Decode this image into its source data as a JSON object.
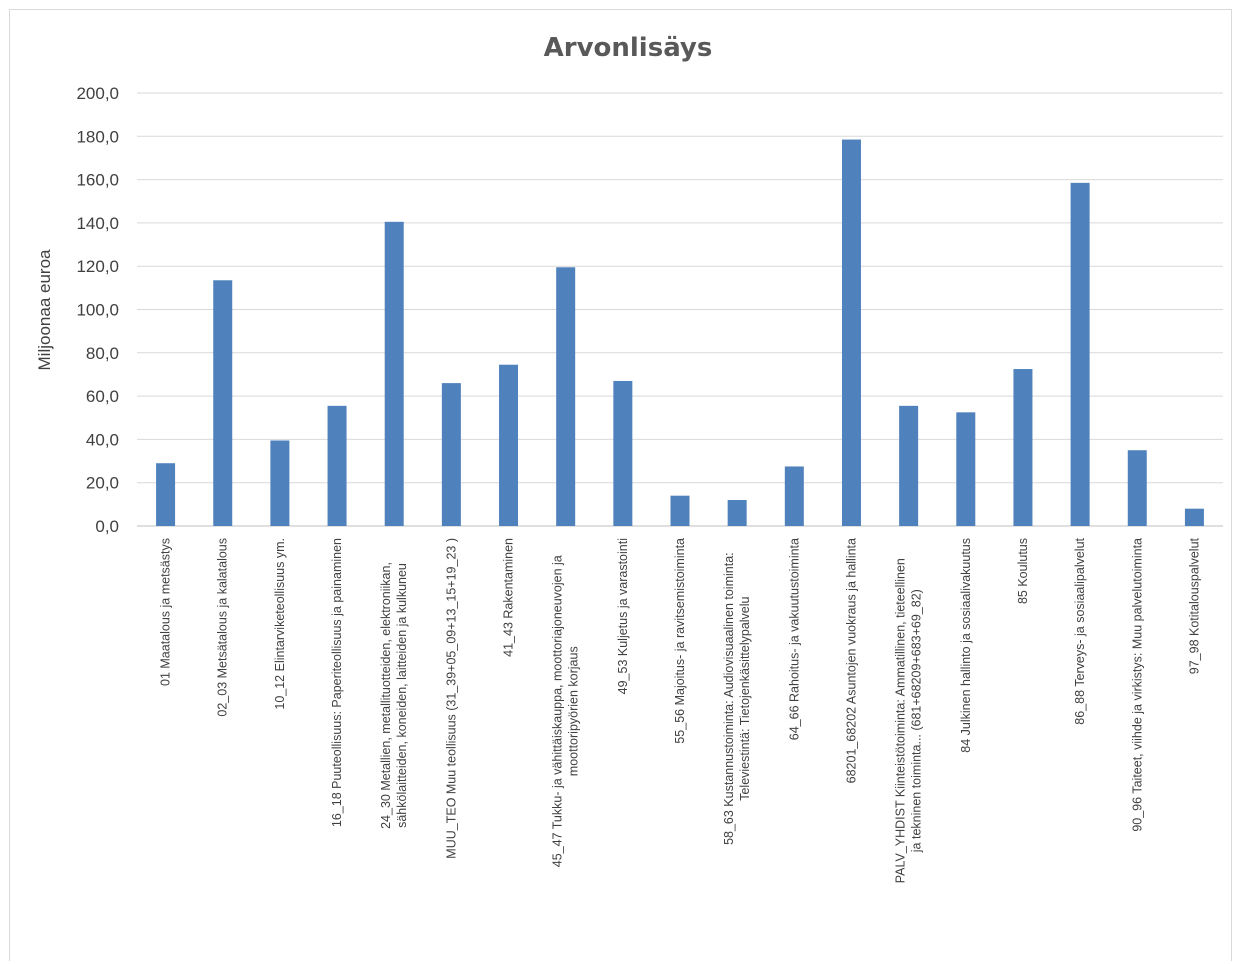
{
  "chart_data": {
    "type": "bar",
    "title": "Arvonlisäys",
    "xlabel": "",
    "ylabel": "Miljoonaa euroa",
    "ylim": [
      0,
      200
    ],
    "yticks": [
      "0,0",
      "20,0",
      "40,0",
      "60,0",
      "80,0",
      "100,0",
      "120,0",
      "140,0",
      "160,0",
      "180,0",
      "200,0"
    ],
    "grid": true,
    "legend": "none",
    "bar_color": "#4f81bd",
    "categories": [
      [
        "01 Maatalous ja metsästys"
      ],
      [
        "02_03 Metsätalous ja kalatalous"
      ],
      [
        "10_12 Elintarviketeollisuus ym."
      ],
      [
        "16_18 Puuteollisuus: Paperiteollisuus ja painaminen"
      ],
      [
        "24_30 Metallien, metallituotteiden, elektroniikan,",
        "sähkölaitteiden, koneiden, laitteiden ja kulkuneu"
      ],
      [
        "MUU_TEO Muu teollisuus (31_39+05_09+13_15+19_23 )"
      ],
      [
        "41_43 Rakentaminen"
      ],
      [
        "45_47 Tukku- ja vähittäiskauppa, moottoriajoneuvojen ja",
        "moottoripyörien korjaus"
      ],
      [
        "49_53 Kuljetus ja varastointi"
      ],
      [
        "55_56 Majoitus- ja ravitsemistoiminta"
      ],
      [
        "58_63 Kustannustoiminta: Audiovisuaalinen toiminta:",
        "Televiestintä: Tietojenkäsittelypalvelu"
      ],
      [
        "64_66 Rahoitus- ja vakuutustoiminta"
      ],
      [
        "68201_68202 Asuntojen vuokraus ja hallinta"
      ],
      [
        "PALV_YHDIST Kiinteistötoiminta: Ammatillinen, tieteellinen",
        "ja tekninen toiminta... (681+68209+683+69_82)"
      ],
      [
        "84 Julkinen hallinto ja sosiaalivakuutus"
      ],
      [
        "85 Koulutus"
      ],
      [
        "86_88 Terveys- ja sosiaalipalvelut"
      ],
      [
        "90_96 Taiteet, viihde ja virkistys: Muu palvelutoiminta"
      ],
      [
        "97_98 Kotitalouspalvelut"
      ]
    ],
    "values": [
      29.0,
      113.5,
      39.5,
      55.5,
      140.5,
      66.0,
      74.5,
      119.5,
      67.0,
      14.0,
      12.0,
      27.5,
      178.5,
      55.5,
      52.5,
      72.5,
      158.5,
      35.0,
      8.0
    ]
  }
}
